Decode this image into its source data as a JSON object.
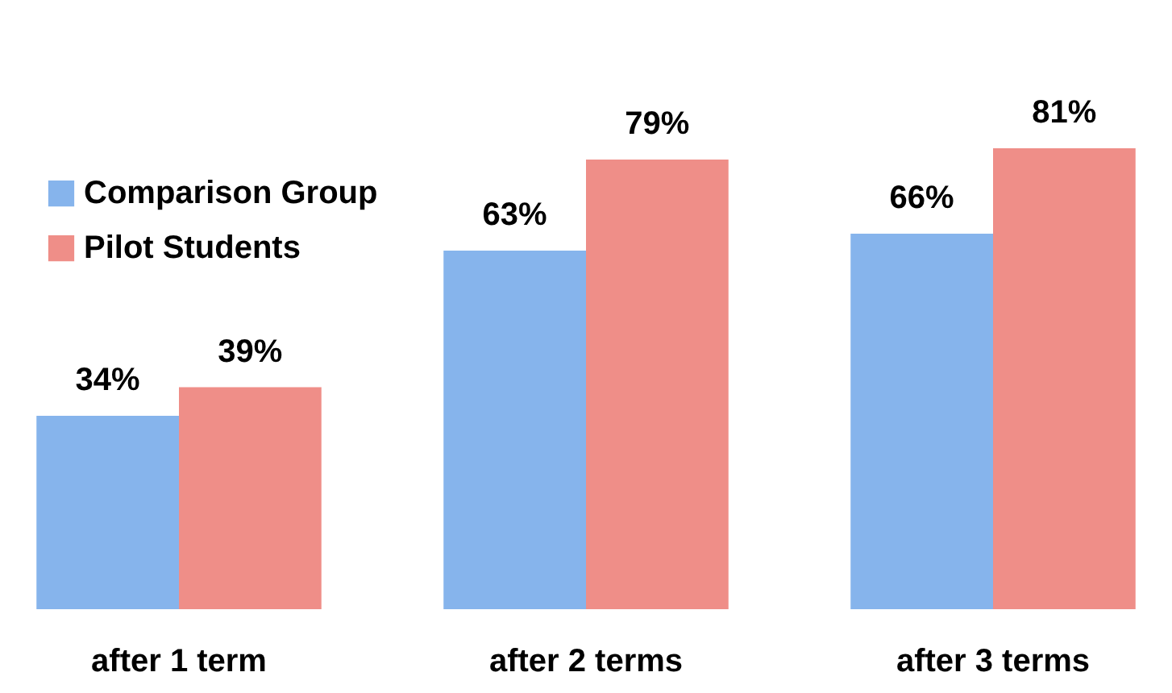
{
  "chart_data": {
    "type": "bar",
    "categories": [
      "after 1 term",
      "after 2 terms",
      "after 3 terms"
    ],
    "series": [
      {
        "name": "Comparison Group",
        "color": "#86b4ec",
        "values": [
          34,
          63,
          66
        ],
        "value_labels": [
          "34%",
          "63%",
          "66%"
        ]
      },
      {
        "name": "Pilot Students",
        "color": "#ef8e88",
        "values": [
          39,
          79,
          81
        ],
        "value_labels": [
          "39%",
          "79%",
          "81%"
        ]
      }
    ],
    "legend": "top left",
    "tick_labels": "x",
    "grid": false
  }
}
